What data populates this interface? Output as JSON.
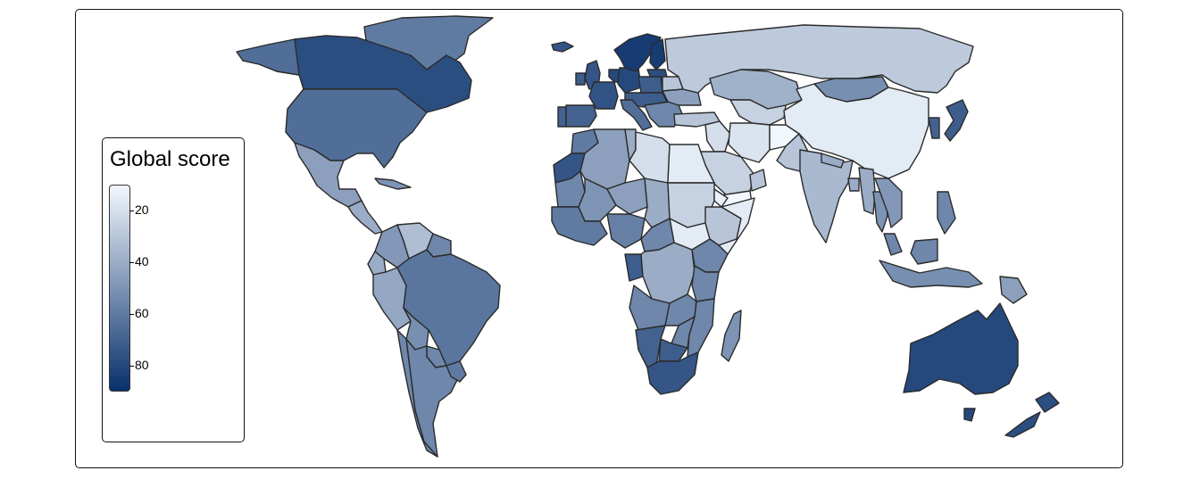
{
  "legend": {
    "title": "Global score",
    "ticks": [
      "20",
      "40",
      "60",
      "80"
    ],
    "scale_min": 10,
    "scale_max": 90,
    "color_low": "#f2f7fd",
    "color_high": "#08306b"
  },
  "map": {
    "projection": "equirectangular",
    "scores": {
      "canada": 78,
      "greenland": 60,
      "usa": 65,
      "mexico": 45,
      "central-america": 40,
      "caribbean": 50,
      "colombia": 48,
      "venezuela": 33,
      "guyana": 55,
      "ecuador": 40,
      "peru": 42,
      "brazil": 62,
      "bolivia": 52,
      "paraguay": 55,
      "chile": 55,
      "argentina": 55,
      "uruguay": 60,
      "iceland": 75,
      "uk": 75,
      "ireland": 72,
      "portugal": 70,
      "spain": 70,
      "france": 76,
      "benelux": 80,
      "germany": 80,
      "scandinavia": 85,
      "finland": 85,
      "baltics": 78,
      "poland": 72,
      "central-europe": 72,
      "italy": 65,
      "balkans": 55,
      "ukraine": 45,
      "belarus": 30,
      "russia": 28,
      "turkey": 30,
      "caucasus": 40,
      "kazakhstan": 38,
      "central-asia": 25,
      "mongolia": 52,
      "china": 15,
      "korea": 70,
      "japan": 72,
      "iran": 18,
      "afghanistan": 10,
      "pakistan": 30,
      "india": 35,
      "nepal": 40,
      "bangladesh": 40,
      "myanmar": 40,
      "thailand": 50,
      "indochina": 48,
      "malaysia": 55,
      "indonesia": 52,
      "philippines": 55,
      "png": 45,
      "australia": 80,
      "new-zealand": 78,
      "morocco": 60,
      "western-sahara": 75,
      "algeria": 45,
      "tunisia": 40,
      "libya": 20,
      "egypt": 15,
      "mauritania": 55,
      "west-africa": 60,
      "nigeria": 58,
      "niger": 45,
      "chad": 40,
      "mali": 50,
      "sudan": 25,
      "south-sudan": 15,
      "ethiopia": 30,
      "somalia": 15,
      "eritrea": 12,
      "middle-east": 20,
      "saudi-arabia": 25,
      "yemen": 10,
      "oman": 30,
      "central-africa": 55,
      "drc": 40,
      "gabon": 72,
      "angola": 55,
      "zambia": 55,
      "tanzania": 55,
      "kenya": 55,
      "mozambique": 55,
      "zimbabwe": 55,
      "namibia": 70,
      "botswana": 72,
      "south-africa": 75,
      "madagascar": 50
    }
  }
}
